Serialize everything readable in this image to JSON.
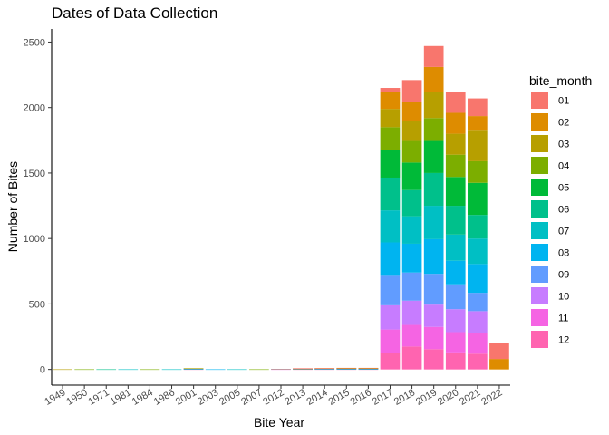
{
  "chart_data": {
    "type": "bar",
    "stacked": true,
    "title": "Dates of Data Collection",
    "xlabel": "Bite Year",
    "ylabel": "Number of Bites",
    "ylim": [
      -120,
      2600
    ],
    "yticks": [
      0,
      500,
      1000,
      1500,
      2000,
      2500
    ],
    "grid": false,
    "legend_position": "right",
    "legend_title": "bite_month",
    "categories": [
      "1949",
      "1950",
      "1971",
      "1981",
      "1984",
      "1986",
      "2001",
      "2003",
      "2005",
      "2007",
      "2012",
      "2013",
      "2014",
      "2015",
      "2016",
      "2017",
      "2018",
      "2019",
      "2020",
      "2021",
      "2022"
    ],
    "months": [
      "01",
      "02",
      "03",
      "04",
      "05",
      "06",
      "07",
      "08",
      "09",
      "10",
      "11",
      "12"
    ],
    "colors": [
      "#F8766D",
      "#DE8C00",
      "#B79F00",
      "#7CAE00",
      "#00BA38",
      "#00C08B",
      "#00BFC4",
      "#00B4F0",
      "#619CFF",
      "#C77CFF",
      "#F564E3",
      "#FF64B0"
    ],
    "series": [
      {
        "name": "01",
        "values": [
          0,
          0,
          0,
          0,
          0,
          0,
          0,
          0,
          0,
          0,
          1,
          1,
          1,
          1,
          1,
          30,
          165,
          160,
          160,
          135,
          125
        ]
      },
      {
        "name": "02",
        "values": [
          0,
          0,
          0,
          0,
          0,
          0,
          0,
          0,
          0,
          0,
          0,
          1,
          1,
          1,
          1,
          130,
          150,
          190,
          160,
          105,
          80
        ]
      },
      {
        "name": "03",
        "values": [
          1,
          0,
          0,
          0,
          0,
          0,
          1,
          0,
          0,
          0,
          0,
          1,
          0,
          1,
          1,
          140,
          150,
          200,
          160,
          240,
          0
        ]
      },
      {
        "name": "04",
        "values": [
          0,
          1,
          0,
          0,
          1,
          0,
          0,
          0,
          0,
          1,
          0,
          0,
          1,
          1,
          1,
          175,
          165,
          175,
          170,
          165,
          0
        ]
      },
      {
        "name": "05",
        "values": [
          0,
          0,
          0,
          0,
          0,
          0,
          1,
          0,
          0,
          0,
          0,
          1,
          0,
          1,
          1,
          210,
          210,
          245,
          220,
          245,
          0
        ]
      },
      {
        "name": "06",
        "values": [
          0,
          0,
          1,
          0,
          0,
          0,
          1,
          0,
          0,
          0,
          0,
          0,
          1,
          1,
          1,
          250,
          200,
          250,
          220,
          180,
          0
        ]
      },
      {
        "name": "07",
        "values": [
          0,
          0,
          0,
          1,
          0,
          1,
          1,
          0,
          1,
          0,
          0,
          1,
          1,
          1,
          1,
          245,
          210,
          255,
          200,
          195,
          0
        ]
      },
      {
        "name": "08",
        "values": [
          0,
          0,
          0,
          0,
          0,
          0,
          1,
          1,
          0,
          0,
          1,
          0,
          1,
          1,
          1,
          255,
          220,
          265,
          180,
          220,
          0
        ]
      },
      {
        "name": "09",
        "values": [
          0,
          0,
          0,
          0,
          0,
          0,
          1,
          0,
          0,
          0,
          0,
          1,
          1,
          1,
          1,
          225,
          215,
          235,
          190,
          140,
          0
        ]
      },
      {
        "name": "10",
        "values": [
          0,
          0,
          0,
          0,
          0,
          0,
          1,
          0,
          0,
          0,
          0,
          1,
          1,
          1,
          1,
          185,
          185,
          170,
          175,
          165,
          0
        ]
      },
      {
        "name": "11",
        "values": [
          0,
          0,
          0,
          0,
          0,
          0,
          1,
          0,
          0,
          0,
          1,
          1,
          1,
          1,
          1,
          180,
          165,
          170,
          155,
          160,
          0
        ]
      },
      {
        "name": "12",
        "values": [
          0,
          0,
          0,
          0,
          0,
          0,
          1,
          0,
          0,
          0,
          0,
          1,
          1,
          1,
          1,
          125,
          175,
          155,
          130,
          120,
          0
        ]
      }
    ]
  }
}
